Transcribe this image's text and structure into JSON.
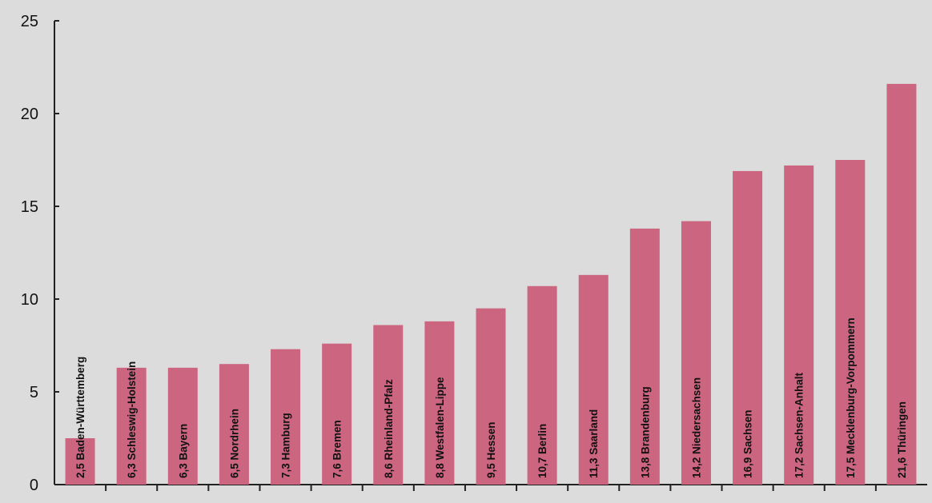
{
  "chart_data": {
    "type": "bar",
    "categories": [
      "2,5 Baden-Württemberg",
      "6,3 Schleswig-Holstein",
      "6,3 Bayern",
      "6,5 Nordrhein",
      "7,3 Hamburg",
      "7,6 Bremen",
      "8,6 Rheinland-Pfalz",
      "8,8 Westfalen-Lippe",
      "9,5 Hessen",
      "10,7 Berlin",
      "11,3 Saarland",
      "13,8 Brandenburg",
      "14,2 Niedersachsen",
      "16,9 Sachsen",
      "17,2 Sachsen-Anhalt",
      "17,5 Mecklenburg-Vorpommern",
      "21,6 Thüringen"
    ],
    "values": [
      2.5,
      6.3,
      6.3,
      6.5,
      7.3,
      7.6,
      8.6,
      8.8,
      9.5,
      10.7,
      11.3,
      13.8,
      14.2,
      16.9,
      17.2,
      17.5,
      21.6
    ],
    "yticks": [
      "0",
      "5",
      "10",
      "15",
      "20",
      "25"
    ],
    "ylim": [
      0,
      25
    ],
    "title": "",
    "xlabel": "",
    "ylabel": "",
    "grid": false,
    "legend": "none",
    "bar_color": "#cc6680",
    "axis_color": "#222222",
    "background_color": "#dcdcdc"
  }
}
